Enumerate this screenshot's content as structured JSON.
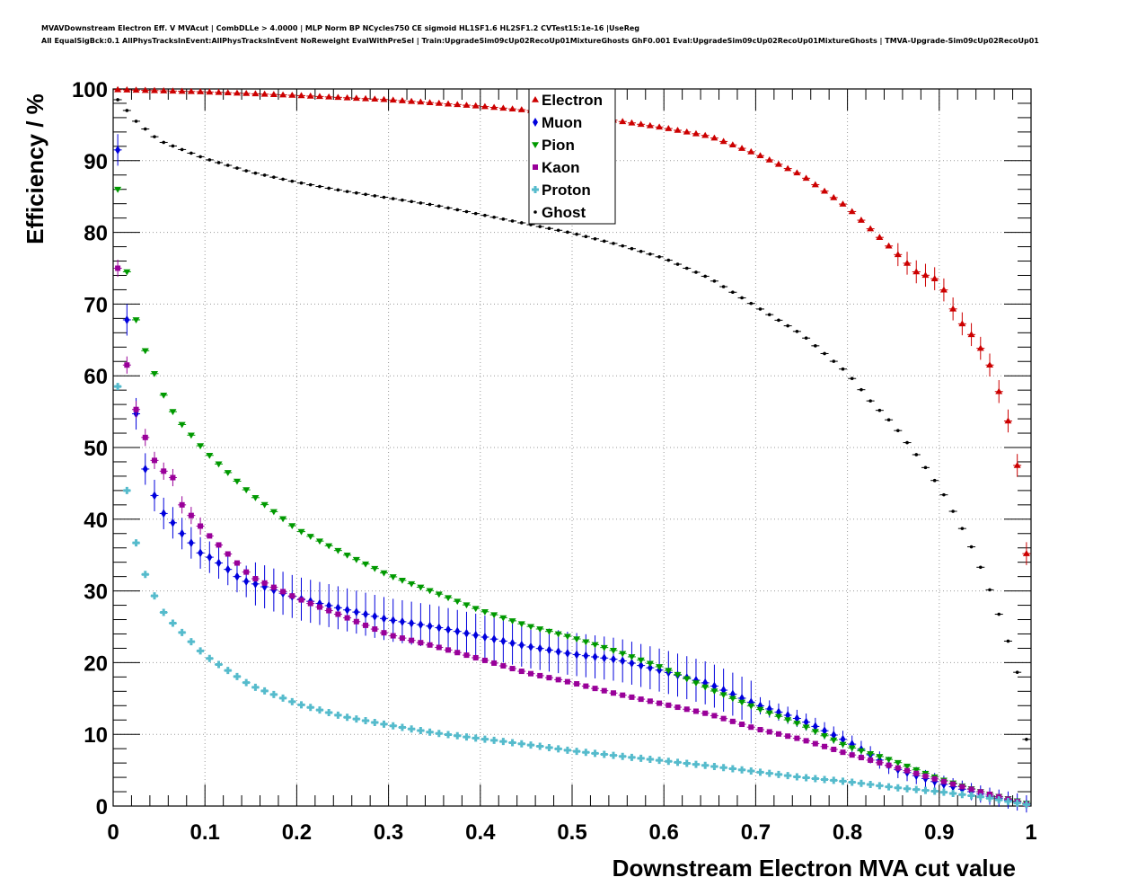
{
  "header": {
    "line1": "MVAVDownstream Electron Eff. V MVAcut | CombDLLe > 4.0000 | MLP Norm BP NCycles750 CE sigmoid HL1SF1.6 HL2SF1.2 CVTest15:1e-16 |UseReg",
    "line2": "All EqualSigBck:0.1 AllPhysTracksInEvent:AllPhysTracksInEvent NoReweight EvalWithPreSel | Train:UpgradeSim09cUp02RecoUp01MixtureGhosts GhF0.001 Eval:UpgradeSim09cUp02RecoUp01MixtureGhosts | TMVA-Upgrade-Sim09cUp02RecoUp01"
  },
  "chart_data": {
    "type": "scatter",
    "xlabel": "Downstream Electron MVA cut value",
    "ylabel": "Efficiency / %",
    "xlim": [
      0,
      1
    ],
    "ylim": [
      0,
      100
    ],
    "grid": true,
    "legend_position": "top-center",
    "x_ticks": [
      "0",
      "0.1",
      "0.2",
      "0.3",
      "0.4",
      "0.5",
      "0.6",
      "0.7",
      "0.8",
      "0.9",
      "1"
    ],
    "y_ticks": [
      "0",
      "10",
      "20",
      "30",
      "40",
      "50",
      "60",
      "70",
      "80",
      "90",
      "100"
    ],
    "x_step": 0.01,
    "x_start": 0.005,
    "series": [
      {
        "name": "Electron",
        "color": "#cc0000",
        "marker": "triangle-up",
        "anchors": [
          [
            0.005,
            99.9
          ],
          [
            0.1,
            99.6
          ],
          [
            0.2,
            99.1
          ],
          [
            0.3,
            98.5
          ],
          [
            0.4,
            97.6
          ],
          [
            0.5,
            96.5
          ],
          [
            0.6,
            94.6
          ],
          [
            0.65,
            93.4
          ],
          [
            0.7,
            91.0
          ],
          [
            0.75,
            88.0
          ],
          [
            0.8,
            83.5
          ],
          [
            0.85,
            77.5
          ],
          [
            0.875,
            74.5
          ],
          [
            0.9,
            73.3
          ],
          [
            0.92,
            68.0
          ],
          [
            0.94,
            65.0
          ],
          [
            0.955,
            61.5
          ],
          [
            0.965,
            57.8
          ],
          [
            0.975,
            53.7
          ],
          [
            0.985,
            47.5
          ],
          [
            0.995,
            35.2
          ]
        ]
      },
      {
        "name": "Muon",
        "color": "#0000dd",
        "marker": "diamond",
        "anchors": [
          [
            0.005,
            91.5
          ],
          [
            0.015,
            67.8
          ],
          [
            0.025,
            54.7
          ],
          [
            0.035,
            47.0
          ],
          [
            0.045,
            43.3
          ],
          [
            0.055,
            40.8
          ],
          [
            0.065,
            39.5
          ],
          [
            0.075,
            38.0
          ],
          [
            0.085,
            36.7
          ],
          [
            0.095,
            35.3
          ],
          [
            0.105,
            34.7
          ],
          [
            0.12,
            33.5
          ],
          [
            0.14,
            31.5
          ],
          [
            0.16,
            30.8
          ],
          [
            0.2,
            29.0
          ],
          [
            0.25,
            27.5
          ],
          [
            0.3,
            26.0
          ],
          [
            0.35,
            25.0
          ],
          [
            0.4,
            23.7
          ],
          [
            0.45,
            22.3
          ],
          [
            0.5,
            21.2
          ],
          [
            0.55,
            20.4
          ],
          [
            0.6,
            18.8
          ],
          [
            0.65,
            17.0
          ],
          [
            0.7,
            14.2
          ],
          [
            0.75,
            12.0
          ],
          [
            0.8,
            9.0
          ],
          [
            0.85,
            5.3
          ],
          [
            0.9,
            3.2
          ],
          [
            0.95,
            1.5
          ],
          [
            0.995,
            0.3
          ]
        ]
      },
      {
        "name": "Pion",
        "color": "#009900",
        "marker": "triangle-down",
        "anchors": [
          [
            0.005,
            86.0
          ],
          [
            0.015,
            74.5
          ],
          [
            0.025,
            67.8
          ],
          [
            0.035,
            63.5
          ],
          [
            0.045,
            60.3
          ],
          [
            0.055,
            57.3
          ],
          [
            0.065,
            55.0
          ],
          [
            0.075,
            53.2
          ],
          [
            0.1,
            49.5
          ],
          [
            0.15,
            43.5
          ],
          [
            0.2,
            38.6
          ],
          [
            0.25,
            35.3
          ],
          [
            0.3,
            32.2
          ],
          [
            0.35,
            29.8
          ],
          [
            0.4,
            27.3
          ],
          [
            0.45,
            25.2
          ],
          [
            0.5,
            23.5
          ],
          [
            0.55,
            21.5
          ],
          [
            0.6,
            19.2
          ],
          [
            0.65,
            16.3
          ],
          [
            0.7,
            13.7
          ],
          [
            0.75,
            11.3
          ],
          [
            0.8,
            8.3
          ],
          [
            0.85,
            6.3
          ],
          [
            0.9,
            3.8
          ],
          [
            0.95,
            1.8
          ],
          [
            0.995,
            0.4
          ]
        ]
      },
      {
        "name": "Kaon",
        "color": "#990099",
        "marker": "square",
        "anchors": [
          [
            0.005,
            75.0
          ],
          [
            0.015,
            61.5
          ],
          [
            0.025,
            55.3
          ],
          [
            0.035,
            51.4
          ],
          [
            0.045,
            48.2
          ],
          [
            0.055,
            46.7
          ],
          [
            0.065,
            45.8
          ],
          [
            0.075,
            42.0
          ],
          [
            0.1,
            38.3
          ],
          [
            0.15,
            32.0
          ],
          [
            0.2,
            29.0
          ],
          [
            0.25,
            26.5
          ],
          [
            0.3,
            23.9
          ],
          [
            0.35,
            22.3
          ],
          [
            0.4,
            20.5
          ],
          [
            0.45,
            18.6
          ],
          [
            0.5,
            17.2
          ],
          [
            0.55,
            15.6
          ],
          [
            0.6,
            14.2
          ],
          [
            0.65,
            12.8
          ],
          [
            0.7,
            10.8
          ],
          [
            0.75,
            9.3
          ],
          [
            0.8,
            7.3
          ],
          [
            0.85,
            5.5
          ],
          [
            0.9,
            3.6
          ],
          [
            0.95,
            1.8
          ],
          [
            0.995,
            0.3
          ]
        ]
      },
      {
        "name": "Proton",
        "color": "#55bbcc",
        "marker": "cross",
        "anchors": [
          [
            0.005,
            58.5
          ],
          [
            0.015,
            44.0
          ],
          [
            0.025,
            36.7
          ],
          [
            0.035,
            32.3
          ],
          [
            0.045,
            29.3
          ],
          [
            0.055,
            27.0
          ],
          [
            0.065,
            25.5
          ],
          [
            0.075,
            24.2
          ],
          [
            0.1,
            21.0
          ],
          [
            0.15,
            16.8
          ],
          [
            0.2,
            14.3
          ],
          [
            0.25,
            12.5
          ],
          [
            0.3,
            11.3
          ],
          [
            0.35,
            10.2
          ],
          [
            0.4,
            9.4
          ],
          [
            0.45,
            8.6
          ],
          [
            0.5,
            7.7
          ],
          [
            0.55,
            7.0
          ],
          [
            0.6,
            6.3
          ],
          [
            0.65,
            5.6
          ],
          [
            0.7,
            4.8
          ],
          [
            0.75,
            4.0
          ],
          [
            0.8,
            3.4
          ],
          [
            0.85,
            2.6
          ],
          [
            0.9,
            2.0
          ],
          [
            0.95,
            1.2
          ],
          [
            0.995,
            0.2
          ]
        ]
      },
      {
        "name": "Ghost",
        "color": "#000000",
        "marker": "dot",
        "anchors": [
          [
            0.005,
            98.5
          ],
          [
            0.025,
            95.5
          ],
          [
            0.05,
            92.8
          ],
          [
            0.1,
            90.3
          ],
          [
            0.15,
            88.4
          ],
          [
            0.2,
            87.0
          ],
          [
            0.25,
            85.8
          ],
          [
            0.3,
            84.8
          ],
          [
            0.35,
            83.8
          ],
          [
            0.4,
            82.5
          ],
          [
            0.45,
            81.2
          ],
          [
            0.5,
            79.9
          ],
          [
            0.55,
            78.3
          ],
          [
            0.6,
            76.4
          ],
          [
            0.65,
            73.6
          ],
          [
            0.7,
            69.7
          ],
          [
            0.75,
            65.8
          ],
          [
            0.8,
            60.4
          ],
          [
            0.825,
            56.5
          ],
          [
            0.85,
            53.2
          ],
          [
            0.875,
            49.0
          ],
          [
            0.9,
            44.5
          ],
          [
            0.91,
            42.3
          ],
          [
            0.92,
            39.9
          ],
          [
            0.93,
            37.5
          ],
          [
            0.94,
            34.8
          ],
          [
            0.95,
            31.8
          ],
          [
            0.96,
            28.5
          ],
          [
            0.97,
            25.0
          ],
          [
            0.98,
            21.0
          ],
          [
            0.99,
            16.3
          ],
          [
            0.995,
            9.3
          ]
        ]
      }
    ]
  }
}
